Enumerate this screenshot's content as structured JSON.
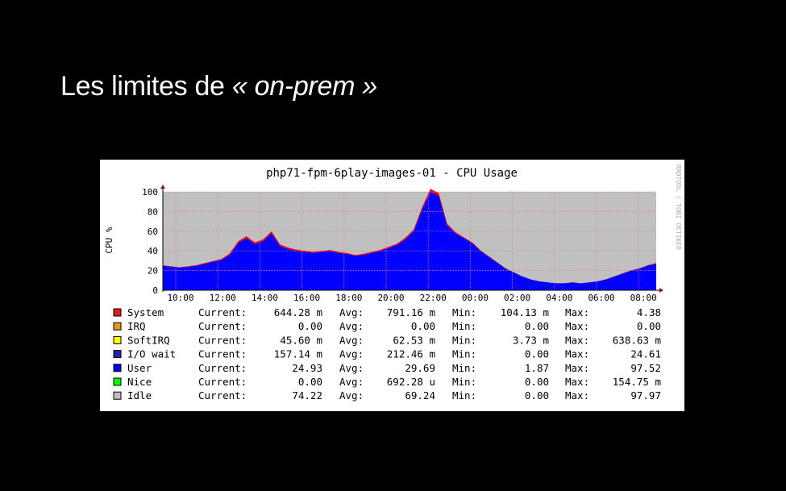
{
  "slide": {
    "title_prefix": "Les limites de ",
    "title_emphasis": "« on-prem »"
  },
  "chart_data": {
    "type": "area",
    "title": "php71-fpm-6play-images-01 - CPU Usage",
    "ylabel": "CPU %",
    "watermark": "RRDTOOL / TOBI OETIKER",
    "ylim": [
      0,
      100
    ],
    "yticks": [
      "0",
      "20",
      "40",
      "60",
      "80",
      "100"
    ],
    "xticks": [
      "10:00",
      "12:00",
      "14:00",
      "16:00",
      "18:00",
      "20:00",
      "22:00",
      "00:00",
      "02:00",
      "04:00",
      "06:00",
      "08:00"
    ],
    "grid": true,
    "stacked": true,
    "series": [
      {
        "name": "User",
        "color": "#0000ff",
        "values": [
          25,
          24,
          23,
          24,
          25,
          27,
          29,
          31,
          36,
          48,
          53,
          47,
          50,
          58,
          45,
          42,
          40,
          39,
          38,
          39,
          40,
          38,
          37,
          35,
          36,
          38,
          40,
          43,
          46,
          52,
          60,
          82,
          100,
          96,
          66,
          58,
          53,
          48,
          40,
          34,
          28,
          22,
          18,
          14,
          11,
          9,
          8,
          7,
          7,
          8,
          7,
          8,
          9,
          11,
          14,
          17,
          20,
          22,
          25,
          27
        ]
      },
      {
        "name": "System",
        "color": "#ff0000",
        "values": [
          0.4,
          0.4,
          0.4,
          0.4,
          0.5,
          0.6,
          0.7,
          0.8,
          1.5,
          1.8,
          1.9,
          1.7,
          1.8,
          1.9,
          1.6,
          1.4,
          1.3,
          1.2,
          1.1,
          1.0,
          1.0,
          1.0,
          0.9,
          0.9,
          1.0,
          1.0,
          1.1,
          1.2,
          1.3,
          1.5,
          1.8,
          2.5,
          3.0,
          2.8,
          1.5,
          1.0,
          0.8,
          0.7,
          0.6,
          0.5,
          0.4,
          0.3,
          0.2,
          0.2,
          0.1,
          0.1,
          0.1,
          0.1,
          0.1,
          0.1,
          0.1,
          0.1,
          0.1,
          0.2,
          0.2,
          0.3,
          0.3,
          0.4,
          0.5,
          0.6
        ]
      }
    ],
    "legend": [
      {
        "name": "System",
        "color": "#e31a1c",
        "current": "644.28 m",
        "avg": "791.16 m",
        "min": "104.13 m",
        "max": "4.38"
      },
      {
        "name": "IRQ",
        "color": "#e8961e",
        "current": "0.00",
        "avg": "0.00",
        "min": "0.00",
        "max": "0.00"
      },
      {
        "name": "SoftIRQ",
        "color": "#ffff00",
        "current": "45.60 m",
        "avg": "62.53 m",
        "min": "3.73 m",
        "max": "638.63 m"
      },
      {
        "name": "I/O wait",
        "color": "#2222aa",
        "current": "157.14 m",
        "avg": "212.46 m",
        "min": "0.00",
        "max": "24.61"
      },
      {
        "name": "User",
        "color": "#0000ff",
        "current": "24.93",
        "avg": "29.69",
        "min": "1.87",
        "max": "97.52"
      },
      {
        "name": "Nice",
        "color": "#00ff00",
        "current": "0.00",
        "avg": "692.28 u",
        "min": "0.00",
        "max": "154.75 m"
      },
      {
        "name": "Idle",
        "color": "#c0c0c0",
        "current": "74.22",
        "avg": "69.24",
        "min": "0.00",
        "max": "97.97"
      }
    ],
    "legend_labels": {
      "current": "Current:",
      "avg": "Avg:",
      "min": "Min:",
      "max": "Max:"
    },
    "colors": {
      "idle_background": "#c0c0c0",
      "grid": "#e08080",
      "axis": "#000000"
    }
  }
}
